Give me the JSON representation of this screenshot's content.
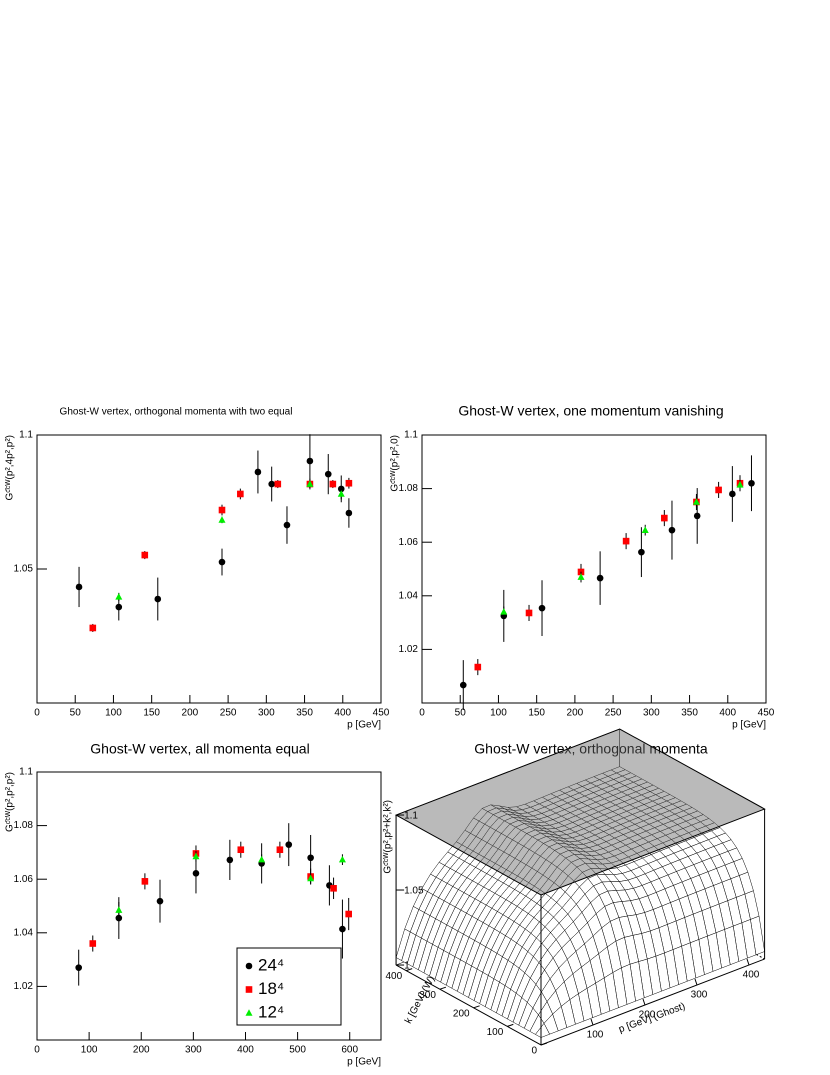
{
  "chart_data": [
    {
      "type": "scatter",
      "title": "Ghost-W vertex, orthogonal momenta with two equal",
      "xlabel": "p [GeV]",
      "ylabel": "Gᶜ̄ᶜᵂ(p²,4p²,p²)",
      "xlim": [
        0,
        450
      ],
      "xticks": [
        0,
        50,
        100,
        150,
        200,
        250,
        300,
        350,
        400,
        450
      ],
      "ylim": [
        1.0,
        1.1
      ],
      "yticks": [
        1.05,
        1.1
      ],
      "series": [
        {
          "color": "#000000",
          "marker": "circle",
          "x": [
            55,
            107,
            158,
            242,
            289,
            307,
            327,
            357,
            381,
            398,
            408
          ],
          "values": [
            1.0433,
            1.0358,
            1.0388,
            1.0526,
            1.0862,
            1.0817,
            1.0664,
            1.0903,
            1.0854,
            1.0799,
            1.0709
          ],
          "errors": [
            0.0075,
            0.005,
            0.008,
            0.005,
            0.008,
            0.0065,
            0.007,
            0.01,
            0.0075,
            0.005,
            0.0055
          ]
        },
        {
          "color": "#ff0000",
          "marker": "square",
          "x": [
            73,
            141,
            242,
            266,
            315,
            357,
            387,
            408
          ],
          "values": [
            1.028,
            1.0552,
            1.072,
            1.078,
            1.0817,
            1.0817,
            1.0817,
            1.082
          ],
          "errors": [
            0.0015,
            0.0015,
            0.002,
            0.002,
            0.0015,
            0.002,
            0.0015,
            0.002
          ]
        },
        {
          "color": "#00ee00",
          "marker": "triangle",
          "x": [
            107,
            242,
            357,
            398
          ],
          "values": [
            1.0396,
            1.0683,
            1.0817,
            1.078
          ],
          "errors": [
            0.0015,
            0.0012,
            0.0015,
            0.002
          ]
        }
      ]
    },
    {
      "type": "scatter",
      "title": "Ghost-W vertex, one momentum vanishing",
      "xlabel": "p [GeV]",
      "ylabel": "Gᶜ̄ᶜᵂ(p²,p²,0)",
      "xlim": [
        0,
        450
      ],
      "xticks": [
        0,
        50,
        100,
        150,
        200,
        250,
        300,
        350,
        400,
        450
      ],
      "ylim": [
        1.0,
        1.1
      ],
      "yticks": [
        1.02,
        1.04,
        1.06,
        1.08,
        1.1
      ],
      "series": [
        {
          "color": "#000000",
          "marker": "circle",
          "x": [
            54,
            107,
            157,
            233,
            287,
            327,
            360,
            406,
            431
          ],
          "values": [
            1.0067,
            1.0325,
            1.0354,
            1.0466,
            1.0563,
            1.0645,
            1.0698,
            1.078,
            1.082
          ],
          "errors": [
            0.0093,
            0.0097,
            0.0104,
            0.01,
            0.0093,
            0.011,
            0.0104,
            0.0104,
            0.0104
          ]
        },
        {
          "color": "#ff0000",
          "marker": "square",
          "x": [
            73,
            140,
            208,
            267,
            317,
            359,
            388,
            416
          ],
          "values": [
            1.0134,
            1.0336,
            1.0489,
            1.0604,
            1.069,
            1.075,
            1.0795,
            1.082
          ],
          "errors": [
            0.003,
            0.003,
            0.003,
            0.003,
            0.003,
            0.003,
            0.003,
            0.003
          ]
        },
        {
          "color": "#00ee00",
          "marker": "triangle",
          "x": [
            107,
            208,
            292,
            359,
            416
          ],
          "values": [
            1.034,
            1.047,
            1.0645,
            1.075,
            1.0814
          ],
          "errors": [
            0.002,
            0.002,
            0.002,
            0.002,
            0.002
          ]
        }
      ]
    },
    {
      "type": "scatter",
      "title": "Ghost-W vertex, all momenta equal",
      "xlabel": "p [GeV]",
      "ylabel": "Gᶜ̄ᶜᵂ(p²,p²,p²)",
      "xlim": [
        0,
        660
      ],
      "xticks": [
        0,
        100,
        200,
        300,
        400,
        500,
        600
      ],
      "ylim": [
        1.0,
        1.1
      ],
      "yticks": [
        1.02,
        1.04,
        1.06,
        1.08,
        1.1
      ],
      "series": [
        {
          "name": "24⁴",
          "color": "#000000",
          "marker": "circle",
          "x": [
            80,
            157,
            236,
            305,
            370,
            431,
            483,
            525,
            561,
            586
          ],
          "values": [
            1.027,
            1.0455,
            1.0518,
            1.0622,
            1.0672,
            1.0659,
            1.0729,
            1.068,
            1.0577,
            1.0414
          ],
          "errors": [
            0.0067,
            0.0078,
            0.008,
            0.0075,
            0.0075,
            0.0075,
            0.008,
            0.0085,
            0.0075,
            0.011
          ]
        },
        {
          "name": "18⁴",
          "color": "#ff0000",
          "marker": "square",
          "x": [
            107,
            207,
            305,
            391,
            466,
            525,
            569,
            598
          ],
          "values": [
            1.036,
            1.0592,
            1.0696,
            1.071,
            1.071,
            1.061,
            1.0566,
            1.047
          ],
          "errors": [
            0.003,
            0.003,
            0.003,
            0.003,
            0.003,
            0.003,
            0.004,
            0.006
          ]
        },
        {
          "name": "12⁴",
          "color": "#00ee00",
          "marker": "triangle",
          "x": [
            157,
            305,
            431,
            525,
            586
          ],
          "values": [
            1.0485,
            1.0685,
            1.0673,
            1.0603,
            1.0673
          ],
          "errors": [
            0.003,
            0.002,
            0.002,
            0.002,
            0.002
          ]
        }
      ]
    },
    {
      "type": "surface",
      "title": "Ghost-W vertex, orthogonal momenta",
      "xlabel": "p [GeV] (Ghost)",
      "ylabel": "k [GeV] (W)",
      "zlabel": "Gᶜ̄ᶜᵂ(p²,p²+k²,k²)",
      "xlim": [
        0,
        430
      ],
      "xticks": [
        100,
        200,
        300,
        400
      ],
      "ylim": [
        0,
        430
      ],
      "yticks": [
        0,
        100,
        200,
        300,
        400
      ],
      "zlim": [
        1,
        1.1
      ],
      "zticks": [
        1,
        1.05,
        1.1
      ]
    }
  ]
}
